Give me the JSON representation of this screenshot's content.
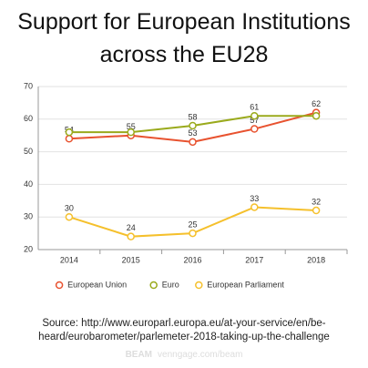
{
  "chart_data": {
    "type": "line",
    "title": "Support for European Institutions across the EU28",
    "categories": [
      "2014",
      "2015",
      "2016",
      "2017",
      "2018"
    ],
    "series": [
      {
        "name": "European Union",
        "color": "#e8522f",
        "values": [
          54,
          55,
          53,
          57,
          62
        ],
        "value_labels": [
          "54",
          "55",
          "53",
          "57",
          "62"
        ]
      },
      {
        "name": "Euro",
        "color": "#9aaa1c",
        "values": [
          56,
          56,
          58,
          61,
          61
        ],
        "value_labels": [
          null,
          null,
          "58",
          "61",
          null
        ]
      },
      {
        "name": "European Parliament",
        "color": "#f5c02c",
        "values": [
          30,
          24,
          25,
          33,
          32
        ],
        "value_labels": [
          "30",
          "24",
          "25",
          "33",
          "32"
        ]
      }
    ],
    "ylim": [
      20,
      70
    ],
    "yticks": [
      20,
      30,
      40,
      50,
      60,
      70
    ],
    "grid": true,
    "legend": "bottom",
    "source": "Source: http://www.europarl.europa.eu/at-your-service/en/be-heard/eurobarometer/parlemeter-2018-taking-up-the-challenge",
    "brand": "BEAM",
    "brand_url": "venngage.com/beam"
  }
}
